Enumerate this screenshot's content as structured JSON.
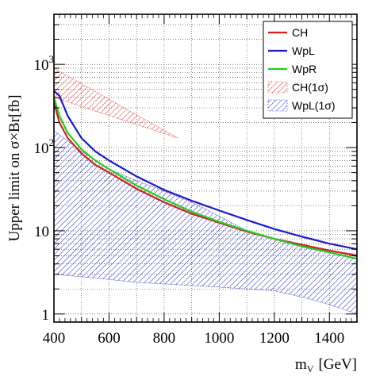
{
  "chart_data": {
    "type": "line",
    "title": "",
    "xlabel": "m",
    "xlabel_sub": "V",
    "xlabel_unit": "[GeV]",
    "ylabel": "Upper limit on σ×Br[fb]",
    "xlim": [
      400,
      1500
    ],
    "ylim": [
      0.8,
      4000
    ],
    "yscale": "log",
    "grid": true,
    "legend_position": "top-right",
    "x_ticks": [
      400,
      600,
      800,
      1000,
      1200,
      1400
    ],
    "x_tick_labels": [
      "400",
      "600",
      "800",
      "1000",
      "1200",
      "1400"
    ],
    "y_tick_labels": [
      {
        "value": 1,
        "base": "1",
        "exp": ""
      },
      {
        "value": 10,
        "base": "10",
        "exp": ""
      },
      {
        "value": 100,
        "base": "10",
        "exp": "2"
      },
      {
        "value": 1000,
        "base": "10",
        "exp": "3"
      }
    ],
    "series": [
      {
        "name": "CH",
        "color": "#cc2222",
        "x": [
          400,
          420,
          450,
          500,
          550,
          600,
          700,
          800,
          900,
          1000,
          1100,
          1200,
          1300,
          1400,
          1500
        ],
        "y": [
          350,
          200,
          130,
          85,
          62,
          50,
          32,
          22,
          16,
          12.5,
          9.8,
          8.0,
          6.8,
          5.8,
          5.0
        ]
      },
      {
        "name": "WpL",
        "color": "#1a1acc",
        "x": [
          400,
          420,
          450,
          500,
          550,
          600,
          700,
          800,
          900,
          1000,
          1100,
          1200,
          1300,
          1400,
          1500
        ],
        "y": [
          480,
          420,
          240,
          130,
          90,
          70,
          45,
          31,
          23,
          17.5,
          13.5,
          10.5,
          8.5,
          7.0,
          6.0
        ]
      },
      {
        "name": "WpR",
        "color": "#22cc22",
        "x": [
          400,
          420,
          450,
          500,
          550,
          600,
          700,
          800,
          900,
          1000,
          1100,
          1200,
          1300,
          1400,
          1500
        ],
        "y": [
          400,
          240,
          150,
          95,
          70,
          55,
          35,
          24,
          17,
          12.8,
          10,
          8.0,
          6.5,
          5.5,
          4.6
        ]
      }
    ],
    "bands": [
      {
        "name": "CH(1σ)",
        "color": "#dd3333",
        "x": [
          400,
          850
        ],
        "upper": [
          900,
          130
        ],
        "lower": [
          400,
          130
        ]
      },
      {
        "name": "WpL(1σ)",
        "color": "#2222cc",
        "x": [
          400,
          500,
          600,
          700,
          800,
          900,
          1000,
          1100,
          1200,
          1300,
          1400,
          1500
        ],
        "upper": [
          160,
          90,
          55,
          40,
          30,
          22,
          15,
          10,
          8,
          6.5,
          5.8,
          5.2
        ],
        "lower": [
          3.0,
          2.8,
          2.6,
          2.4,
          2.3,
          2.2,
          2.1,
          2.0,
          1.9,
          1.6,
          1.3,
          1.0
        ]
      }
    ]
  }
}
